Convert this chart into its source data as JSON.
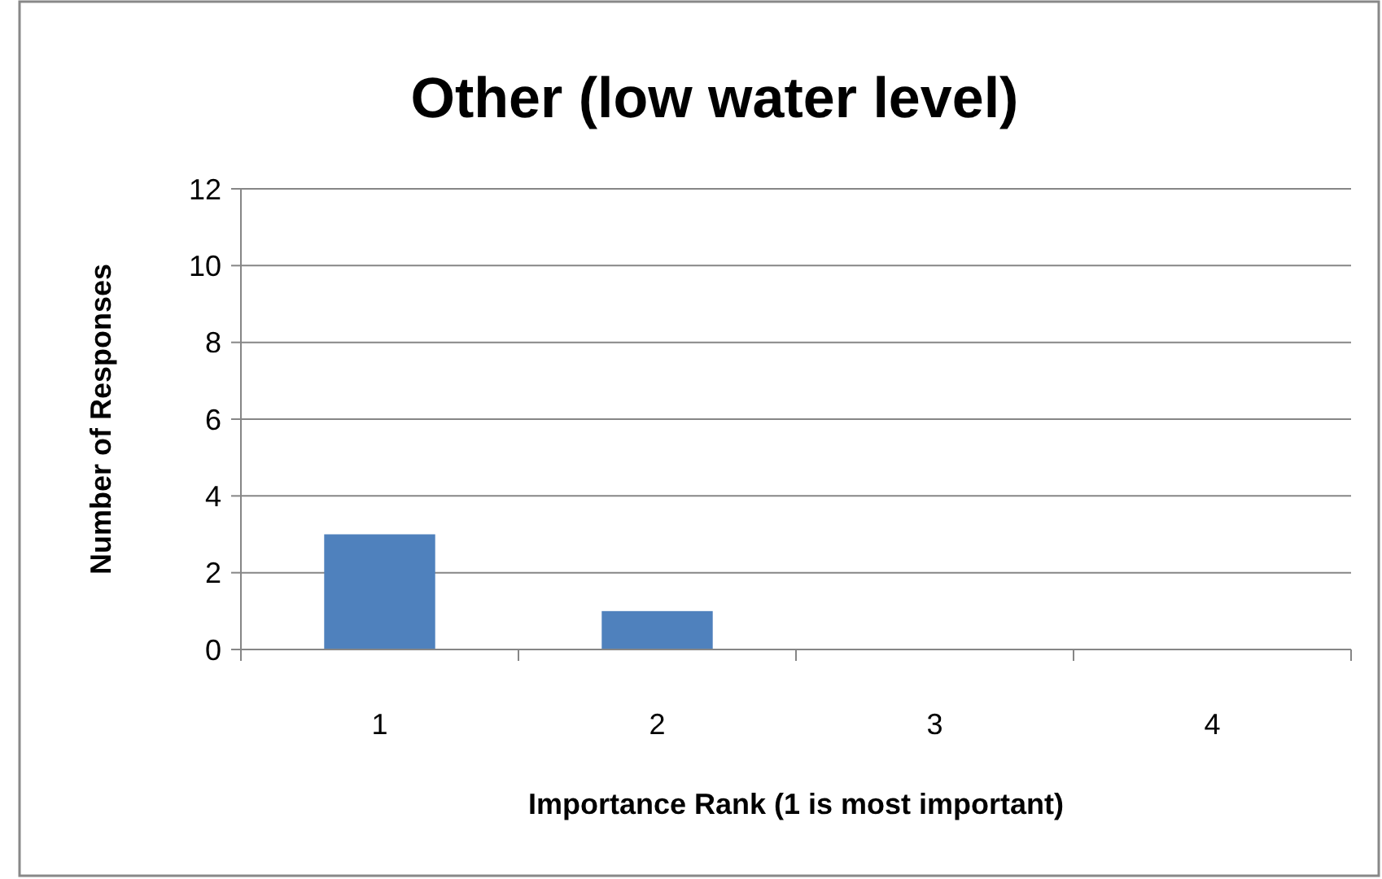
{
  "chart_data": {
    "type": "bar",
    "title": "Other (low water level)",
    "xlabel": "Importance Rank (1 is most important)",
    "ylabel": "Number of Responses",
    "categories": [
      "1",
      "2",
      "3",
      "4"
    ],
    "values": [
      3,
      1,
      0,
      0
    ],
    "color": "#4f81bd",
    "ylim": [
      0,
      12
    ],
    "yticks": [
      0,
      2,
      4,
      6,
      8,
      10,
      12
    ],
    "grid": "y"
  }
}
